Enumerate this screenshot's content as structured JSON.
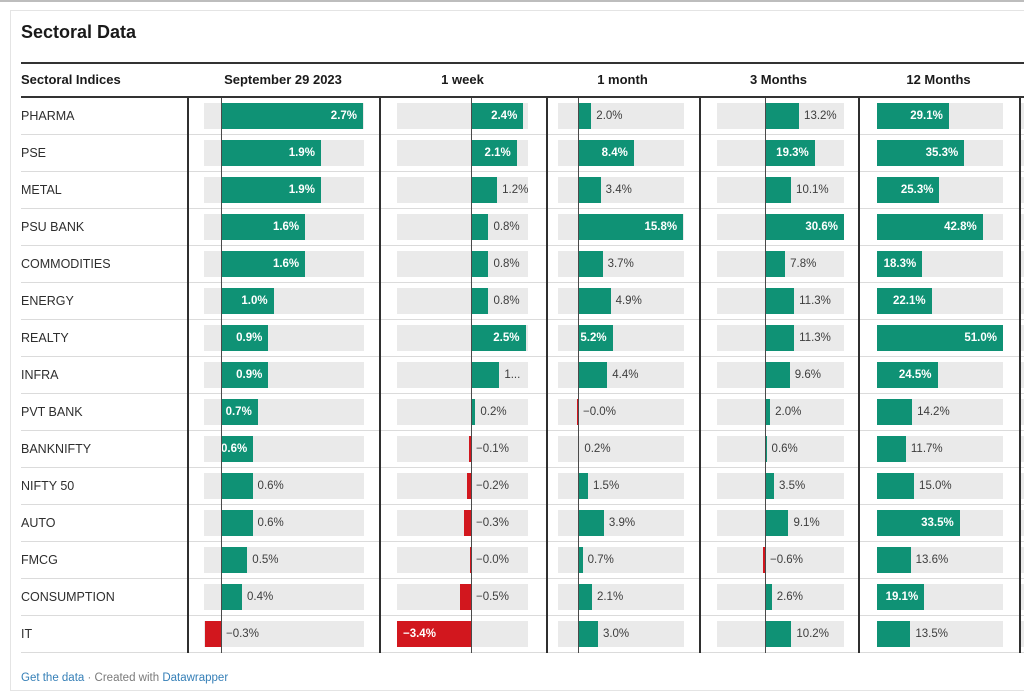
{
  "page": {
    "title": "Sectoral Data"
  },
  "table": {
    "row_header": "Sectoral Indices",
    "columns": [
      "September 29 2023",
      "1 week",
      "1 month",
      "3 Months",
      "12 Months"
    ]
  },
  "footer": {
    "get_data": "Get the data",
    "dot": "·",
    "created": "Created with",
    "brand": "Datawrapper"
  },
  "colors": {
    "positive": "#0f9275",
    "negative": "#d2171e",
    "track": "#eaeaea",
    "link": "#357fb7"
  },
  "chart_data": {
    "type": "bar",
    "title": "Sectoral Data",
    "row_header": "Sectoral Indices",
    "unit": "%",
    "legend_position": "none",
    "grid": false,
    "categories": [
      "PHARMA",
      "PSE",
      "METAL",
      "PSU BANK",
      "COMMODITIES",
      "ENERGY",
      "REALTY",
      "INFRA",
      "PVT BANK",
      "BANKNIFTY",
      "NIFTY 50",
      "AUTO",
      "FMCG",
      "CONSUMPTION",
      "IT"
    ],
    "series": [
      {
        "name": "September 29 2023",
        "values": [
          2.7,
          1.9,
          1.9,
          1.6,
          1.6,
          1.0,
          0.9,
          0.9,
          0.7,
          0.6,
          0.6,
          0.6,
          0.5,
          0.4,
          -0.3
        ],
        "labels": [
          "2.7%",
          "1.9%",
          "1.9%",
          "1.6%",
          "1.6%",
          "1.0%",
          "0.9%",
          "0.9%",
          "0.7%",
          "0.6%",
          "0.6%",
          "0.6%",
          "0.5%",
          "0.4%",
          "−0.3%"
        ],
        "label_inside": [
          true,
          true,
          true,
          true,
          true,
          true,
          true,
          true,
          true,
          true,
          false,
          false,
          false,
          false,
          false
        ],
        "axis": {
          "min": -0.35,
          "max": 2.72
        }
      },
      {
        "name": "1 week",
        "values": [
          2.4,
          2.1,
          1.2,
          0.8,
          0.8,
          0.8,
          2.5,
          1.3,
          0.2,
          -0.1,
          -0.2,
          -0.3,
          -0.03,
          -0.5,
          -3.4
        ],
        "labels": [
          "2.4%",
          "2.1%",
          "1.2%",
          "0.8%",
          "0.8%",
          "0.8%",
          "2.5%",
          "1...",
          "0.2%",
          "−0.1%",
          "−0.2%",
          "−0.3%",
          "−0.0%",
          "−0.5%",
          "−3.4%"
        ],
        "label_inside": [
          true,
          true,
          false,
          false,
          false,
          false,
          true,
          false,
          false,
          false,
          false,
          false,
          false,
          false,
          true
        ],
        "axis": {
          "min": -3.4,
          "max": 2.6
        }
      },
      {
        "name": "1 month",
        "values": [
          2.0,
          8.4,
          3.4,
          15.8,
          3.7,
          4.9,
          5.2,
          4.4,
          -0.03,
          0.2,
          1.5,
          3.9,
          0.7,
          2.1,
          3.0
        ],
        "labels": [
          "2.0%",
          "8.4%",
          "3.4%",
          "15.8%",
          "3.7%",
          "4.9%",
          "5.2%",
          "4.4%",
          "−0.0%",
          "0.2%",
          "1.5%",
          "3.9%",
          "0.7%",
          "2.1%",
          "3.0%"
        ],
        "label_inside": [
          false,
          true,
          false,
          true,
          false,
          false,
          true,
          false,
          false,
          false,
          false,
          false,
          false,
          false,
          false
        ],
        "axis": {
          "min": -3.0,
          "max": 15.9
        }
      },
      {
        "name": "3 Months",
        "values": [
          13.2,
          19.3,
          10.1,
          30.6,
          7.8,
          11.3,
          11.3,
          9.6,
          2.0,
          0.6,
          3.5,
          9.1,
          -0.6,
          2.6,
          10.2
        ],
        "labels": [
          "13.2%",
          "19.3%",
          "10.1%",
          "30.6%",
          "7.8%",
          "11.3%",
          "11.3%",
          "9.6%",
          "2.0%",
          "0.6%",
          "3.5%",
          "9.1%",
          "−0.6%",
          "2.6%",
          "10.2%"
        ],
        "label_inside": [
          false,
          true,
          false,
          true,
          false,
          false,
          false,
          false,
          false,
          false,
          false,
          false,
          false,
          false,
          false
        ],
        "axis": {
          "min": -18.6,
          "max": 30.7
        }
      },
      {
        "name": "12 Months",
        "values": [
          29.1,
          35.3,
          25.3,
          42.8,
          18.3,
          22.1,
          51.0,
          24.5,
          14.2,
          11.7,
          15.0,
          33.5,
          13.6,
          19.1,
          13.5
        ],
        "labels": [
          "29.1%",
          "35.3%",
          "25.3%",
          "42.8%",
          "18.3%",
          "22.1%",
          "51.0%",
          "24.5%",
          "14.2%",
          "11.7%",
          "15.0%",
          "33.5%",
          "13.6%",
          "19.1%",
          "13.5%"
        ],
        "label_inside": [
          true,
          true,
          true,
          true,
          true,
          true,
          true,
          true,
          false,
          false,
          false,
          true,
          false,
          true,
          false
        ],
        "axis": {
          "min": 0,
          "max": 51.0
        }
      }
    ]
  }
}
